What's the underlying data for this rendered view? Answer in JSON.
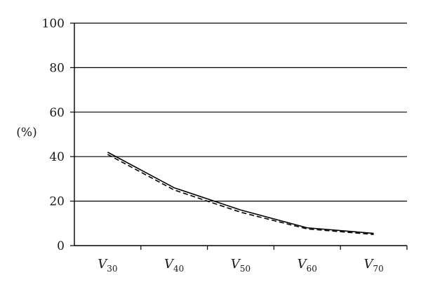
{
  "chart_data": {
    "type": "line",
    "categories": [
      "V30",
      "V40",
      "V50",
      "V60",
      "V70"
    ],
    "category_labels": [
      {
        "main": "V",
        "sub": "30"
      },
      {
        "main": "V",
        "sub": "40"
      },
      {
        "main": "V",
        "sub": "50"
      },
      {
        "main": "V",
        "sub": "60"
      },
      {
        "main": "V",
        "sub": "70"
      }
    ],
    "series": [
      {
        "values": [
          42,
          26,
          16,
          8,
          5.5
        ],
        "style": "solid",
        "color": "#000000"
      },
      {
        "values": [
          41,
          25,
          15,
          7.5,
          5
        ],
        "style": "dashed",
        "color": "#000000"
      }
    ],
    "title": "",
    "xlabel": "",
    "ylabel": "(%)",
    "ylim": [
      0,
      100
    ],
    "yticks": [
      0,
      20,
      40,
      60,
      80,
      100
    ],
    "grid": true,
    "legend": "none"
  }
}
